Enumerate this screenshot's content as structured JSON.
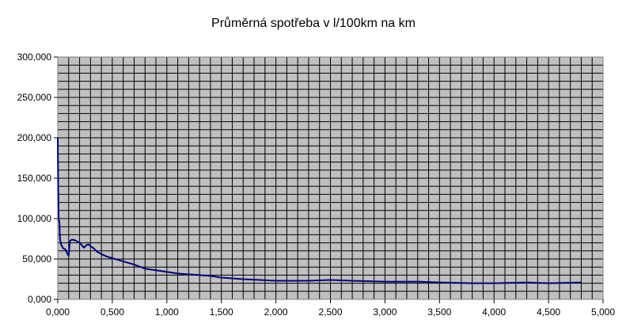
{
  "chart_data": {
    "type": "line",
    "title": "Průměrná spotřeba v l/100km na km",
    "xlabel": "",
    "ylabel": "",
    "xlim": [
      0,
      5
    ],
    "ylim": [
      0,
      300
    ],
    "x_ticks": [
      0,
      0.5,
      1,
      1.5,
      2,
      2.5,
      3,
      3.5,
      4,
      4.5,
      5
    ],
    "x_tick_labels": [
      "0,000",
      "0,500",
      "1,000",
      "1,500",
      "2,000",
      "2,500",
      "3,000",
      "3,500",
      "4,000",
      "4,500",
      "5,000"
    ],
    "y_ticks": [
      0,
      50,
      100,
      150,
      200,
      250,
      300
    ],
    "y_tick_labels": [
      "0,000",
      "50,000",
      "100,000",
      "150,000",
      "200,000",
      "250,000",
      "300,000"
    ],
    "grid": true,
    "legend": "none",
    "colors": {
      "plot_background": "#c0c0c0",
      "grid": "#000000",
      "line": "#000080"
    },
    "series": [
      {
        "x": [
          0.0,
          0.003,
          0.008,
          0.015,
          0.02,
          0.03,
          0.05,
          0.07,
          0.09,
          0.1,
          0.11,
          0.13,
          0.16,
          0.2,
          0.24,
          0.26,
          0.28,
          0.3,
          0.33,
          0.36,
          0.4,
          0.45,
          0.5,
          0.6,
          0.7,
          0.8,
          0.9,
          1.0,
          1.1,
          1.2,
          1.3,
          1.4,
          1.5,
          1.7,
          2.0,
          2.3,
          2.5,
          2.7,
          3.0,
          3.3,
          3.5,
          3.8,
          4.0,
          4.3,
          4.5,
          4.8
        ],
        "y": [
          200,
          150,
          100,
          95,
          75,
          68,
          63,
          62,
          56,
          54,
          72,
          74,
          73,
          70,
          64,
          67,
          68,
          66,
          63,
          59,
          56,
          53,
          51,
          47,
          43,
          38,
          36,
          34,
          32,
          31,
          30,
          29,
          27,
          25,
          23,
          23,
          24,
          23,
          22,
          22,
          21,
          20,
          20,
          21,
          20,
          21
        ]
      }
    ]
  }
}
